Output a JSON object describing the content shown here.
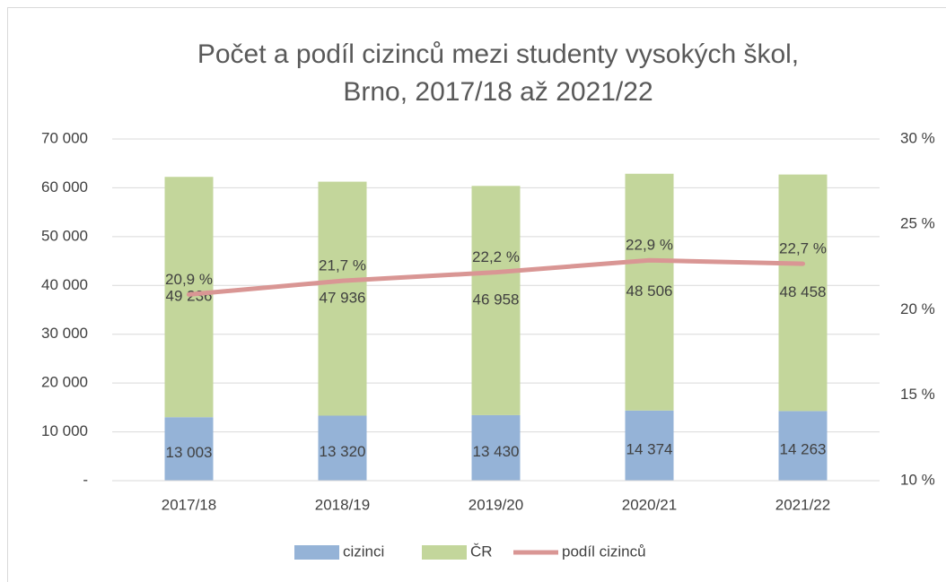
{
  "chart_data": {
    "type": "bar",
    "title": [
      "Počet a podíl cizinců mezi studenty vysokých škol,",
      "Brno, 2017/18 až 2021/22"
    ],
    "categories": [
      "2017/18",
      "2018/19",
      "2019/20",
      "2020/21",
      "2021/22"
    ],
    "series": [
      {
        "name": "cizinci",
        "color": "#95b3d7",
        "values": [
          13003,
          13320,
          13430,
          14374,
          14263
        ],
        "value_labels": [
          "13 003",
          "13 320",
          "13 430",
          "14 374",
          "14 263"
        ]
      },
      {
        "name": "ČR",
        "color": "#c3d69b",
        "values": [
          49236,
          47936,
          46958,
          48506,
          48458
        ],
        "value_labels": [
          "49 236",
          "47 936",
          "46 958",
          "48 506",
          "48 458"
        ]
      },
      {
        "name": "podíl cizinců",
        "color": "#d99694",
        "type": "line",
        "axis": "y2",
        "values": [
          20.9,
          21.7,
          22.2,
          22.9,
          22.7
        ],
        "value_labels": [
          "20,9 %",
          "21,7 %",
          "22,2 %",
          "22,9 %",
          "22,7 %"
        ]
      }
    ],
    "stacked": true,
    "ylim": [
      0,
      70000
    ],
    "yticks": [
      {
        "value": 0,
        "label": "-"
      },
      {
        "value": 10000,
        "label": "10 000"
      },
      {
        "value": 20000,
        "label": "20 000"
      },
      {
        "value": 30000,
        "label": "30 000"
      },
      {
        "value": 40000,
        "label": "40 000"
      },
      {
        "value": 50000,
        "label": "50 000"
      },
      {
        "value": 60000,
        "label": "60 000"
      },
      {
        "value": 70000,
        "label": "70 000"
      }
    ],
    "y2lim": [
      10,
      30
    ],
    "y2ticks": [
      {
        "value": 10,
        "label": "10 %"
      },
      {
        "value": 15,
        "label": "15 %"
      },
      {
        "value": 20,
        "label": "20 %"
      },
      {
        "value": 25,
        "label": "25 %"
      },
      {
        "value": 30,
        "label": "30 %"
      }
    ],
    "grid": true,
    "legend": "bottom"
  }
}
